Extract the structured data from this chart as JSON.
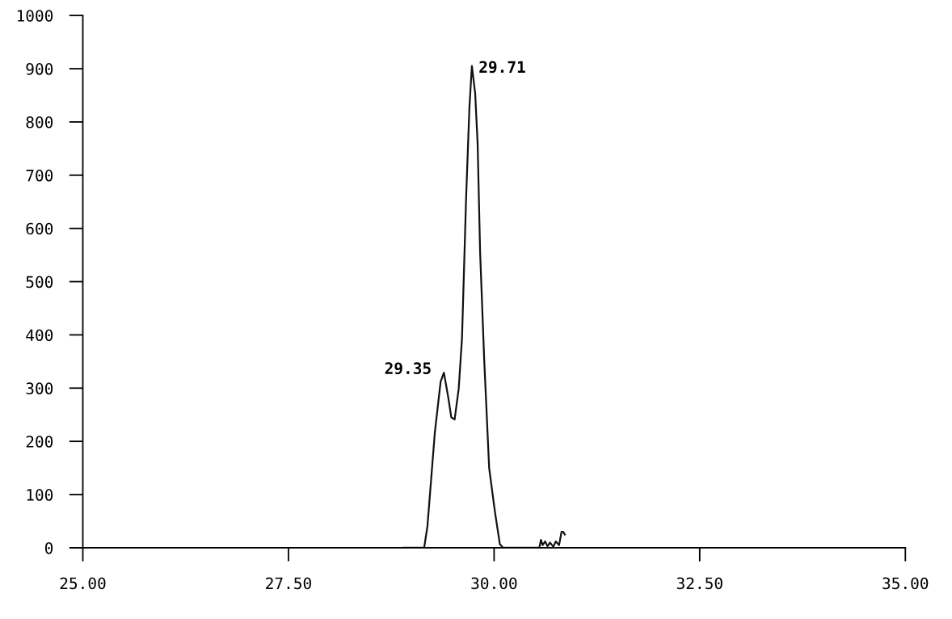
{
  "chart_data": {
    "type": "line",
    "color": "#111111",
    "x": [
      28.9,
      29.15,
      29.19,
      29.28,
      29.35,
      29.39,
      29.44,
      29.48,
      29.52,
      29.57,
      29.61,
      29.66,
      29.7,
      29.73,
      29.77,
      29.8,
      29.83,
      29.88,
      29.94,
      30.01,
      30.07,
      30.11,
      30.55,
      30.57,
      30.59,
      30.62,
      30.65,
      30.68,
      30.72,
      30.75,
      30.79,
      30.82,
      30.84,
      30.86
    ],
    "values": [
      0,
      0,
      41,
      217,
      312,
      329,
      285,
      245,
      241,
      299,
      394,
      658,
      827,
      905,
      854,
      759,
      556,
      353,
      150,
      68,
      7,
      0,
      0,
      15,
      5,
      12,
      3,
      10,
      2,
      12,
      5,
      30,
      30,
      25
    ],
    "xlim": [
      25,
      35
    ],
    "ylim": [
      0,
      1000
    ],
    "xticks": [
      {
        "value": 25,
        "label": "25.00"
      },
      {
        "value": 27.5,
        "label": "27.50"
      },
      {
        "value": 30,
        "label": "30.00"
      },
      {
        "value": 32.5,
        "label": "32.50"
      },
      {
        "value": 35,
        "label": "35.00"
      }
    ],
    "yticks": [
      0,
      100,
      200,
      300,
      400,
      500,
      600,
      700,
      800,
      900,
      1000
    ],
    "annotations": [
      {
        "text": "29.35",
        "x": 29.35,
        "y": 312
      },
      {
        "text": "29.71",
        "x": 29.73,
        "y": 905
      }
    ],
    "grid": false,
    "legend": false,
    "marker": "none",
    "line_style": "solid"
  }
}
